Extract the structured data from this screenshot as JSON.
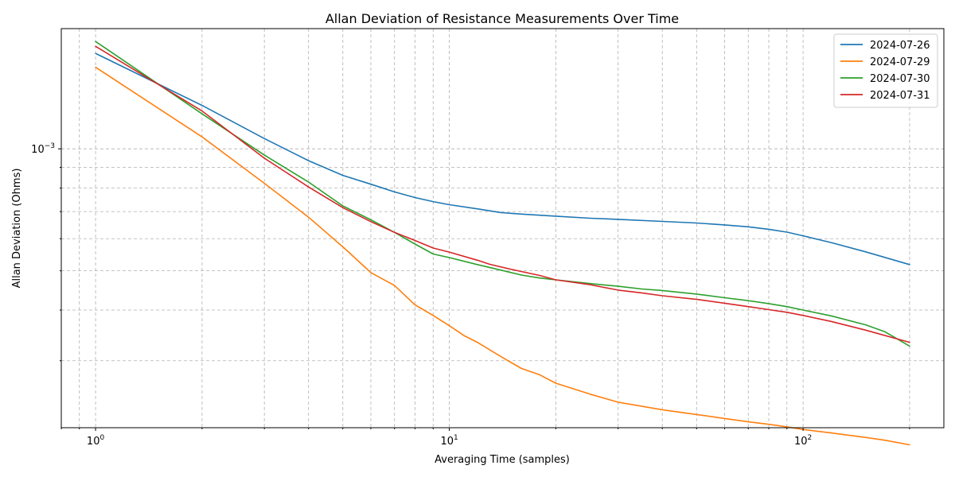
{
  "chart_data": {
    "type": "line",
    "title": "Allan Deviation of Resistance Measurements Over Time",
    "xlabel": "Averaging Time (samples)",
    "ylabel": "Allan Deviation (Ohms)",
    "xscale": "log",
    "yscale": "log",
    "xlim": [
      0.8,
      250
    ],
    "ylim": [
      0.000205,
      0.00198
    ],
    "grid": true,
    "legend_position": "top-right",
    "x_tick_labels": [
      {
        "value": 1,
        "base": "10",
        "exp": "0"
      },
      {
        "value": 10,
        "base": "10",
        "exp": "1"
      },
      {
        "value": 100,
        "base": "10",
        "exp": "2"
      }
    ],
    "y_tick_labels": [
      {
        "value": 0.001,
        "base": "10",
        "exp": "−3"
      }
    ],
    "x_grid_values": [
      0.8,
      0.9,
      1,
      2,
      3,
      4,
      5,
      6,
      7,
      8,
      9,
      10,
      20,
      30,
      40,
      50,
      60,
      70,
      80,
      90,
      100,
      200
    ],
    "y_grid_values": [
      0.0003,
      0.0004,
      0.0005,
      0.0006,
      0.0007,
      0.0008,
      0.0009,
      0.001
    ],
    "series": [
      {
        "name": "2024-07-26",
        "color": "#1f77b4",
        "x": [
          1,
          2,
          3,
          4,
          5,
          6,
          7,
          8,
          9,
          10,
          12,
          14,
          16,
          20,
          25,
          30,
          40,
          50,
          60,
          70,
          80,
          90,
          100,
          120,
          150,
          200
        ],
        "y": [
          0.00172,
          0.00128,
          0.00106,
          0.000935,
          0.00086,
          0.000818,
          0.000783,
          0.000758,
          0.000741,
          0.000728,
          0.000711,
          0.000696,
          0.00069,
          0.000682,
          0.000674,
          0.00067,
          0.000662,
          0.000656,
          0.000649,
          0.000642,
          0.000633,
          0.000623,
          0.00061,
          0.000587,
          0.000557,
          0.000518
        ]
      },
      {
        "name": "2024-07-29",
        "color": "#ff7f0e",
        "x": [
          1,
          2,
          3,
          4,
          5,
          6,
          7,
          8,
          9,
          10,
          11,
          12,
          14,
          16,
          18,
          20,
          25,
          30,
          40,
          50,
          60,
          70,
          80,
          90,
          100,
          120,
          150,
          170,
          200
        ],
        "y": [
          0.00159,
          0.00107,
          0.000822,
          0.000678,
          0.000573,
          0.000495,
          0.00046,
          0.000412,
          0.000388,
          0.000366,
          0.000346,
          0.000333,
          0.000307,
          0.000287,
          0.000277,
          0.000264,
          0.000248,
          0.000237,
          0.000227,
          0.000221,
          0.000216,
          0.000212,
          0.000209,
          0.000206,
          0.000203,
          0.000199,
          0.000194,
          0.000191,
          0.000186
        ]
      },
      {
        "name": "2024-07-30",
        "color": "#2ca02c",
        "x": [
          1,
          2,
          3,
          4,
          5,
          6,
          7,
          8,
          9,
          10,
          12,
          14,
          16,
          18,
          20,
          25,
          30,
          35,
          40,
          50,
          60,
          70,
          80,
          90,
          100,
          120,
          150,
          170,
          200
        ],
        "y": [
          0.00184,
          0.00122,
          0.000965,
          0.000828,
          0.000723,
          0.000668,
          0.000622,
          0.000582,
          0.00055,
          0.000539,
          0.000518,
          0.000502,
          0.000488,
          0.00048,
          0.000475,
          0.000465,
          0.000458,
          0.000451,
          0.000447,
          0.000438,
          0.000429,
          0.000422,
          0.000415,
          0.000408,
          0.0004,
          0.000387,
          0.000368,
          0.000354,
          0.000326
        ]
      },
      {
        "name": "2024-07-31",
        "color": "#d62728",
        "x": [
          1,
          2,
          3,
          4,
          5,
          6,
          7,
          8,
          9,
          10,
          12,
          13,
          15,
          18,
          20,
          25,
          30,
          35,
          40,
          50,
          60,
          70,
          80,
          90,
          100,
          120,
          150,
          200
        ],
        "y": [
          0.00179,
          0.00124,
          0.000948,
          0.000805,
          0.000716,
          0.000661,
          0.000622,
          0.000594,
          0.000569,
          0.000556,
          0.000531,
          0.000519,
          0.000504,
          0.000487,
          0.000475,
          0.000462,
          0.000448,
          0.000441,
          0.000434,
          0.000425,
          0.000416,
          0.000408,
          0.000401,
          0.000395,
          0.000388,
          0.000375,
          0.000357,
          0.000333
        ]
      }
    ]
  }
}
